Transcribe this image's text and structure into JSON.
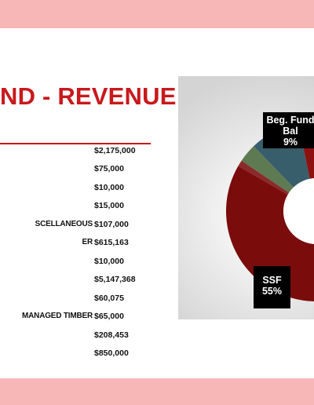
{
  "slide": {
    "title": "ND - REVENUE"
  },
  "revenue_items": [
    {
      "label": "",
      "amount": "$2,175,000"
    },
    {
      "label": "",
      "amount": "$75,000"
    },
    {
      "label": "",
      "amount": "$10,000"
    },
    {
      "label": "",
      "amount": "$15,000"
    },
    {
      "label": "SCELLANEOUS",
      "amount": "$107,000"
    },
    {
      "label": "ER",
      "amount": "$615,163"
    },
    {
      "label": "",
      "amount": "$10,000"
    },
    {
      "label": "",
      "amount": "$5,147,368"
    },
    {
      "label": "",
      "amount": "$60,075"
    },
    {
      "label": "MANAGED TIMBER",
      "amount": "$65,000"
    },
    {
      "label": "",
      "amount": "$208,453"
    },
    {
      "label": "",
      "amount": "$850,000"
    }
  ],
  "chart_data": {
    "type": "pie",
    "title": "",
    "slices": [
      {
        "name": "Beg. Fund Bal",
        "label": "Beg. Fund\nBal",
        "percent": 9,
        "color": "#385d6b"
      },
      {
        "name": "",
        "label": "",
        "percent": 55,
        "color": "#7a0c0c"
      },
      {
        "name": "",
        "label": "",
        "percent": 3,
        "color": "#5e7a52"
      },
      {
        "name": "",
        "label": "",
        "percent": 1,
        "color": "#8a2b2b"
      }
    ],
    "callouts": [
      {
        "line1": "Beg. Fund",
        "line2": "Bal",
        "line3": "9%"
      },
      {
        "line1": "SSF",
        "line2": "55%"
      }
    ]
  }
}
